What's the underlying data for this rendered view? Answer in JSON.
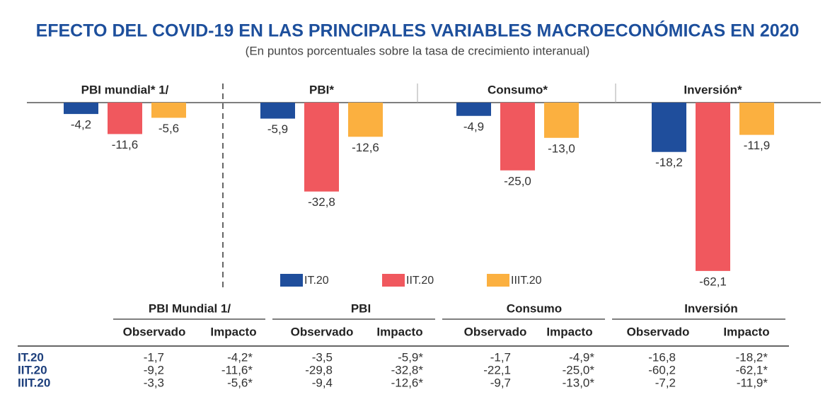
{
  "chart_data": {
    "type": "bar",
    "title": "EFECTO DEL COVID-19 EN LAS PRINCIPALES VARIABLES MACROECONÓMICAS EN 2020",
    "subtitle": "(En puntos porcentuales sobre la tasa de crecimiento interanual)",
    "categories": [
      "PBI mundial* 1/",
      "PBI*",
      "Consumo*",
      "Inversión*"
    ],
    "ylim": [
      -65,
      0
    ],
    "series": [
      {
        "name": "IT.20",
        "color": "#1f4e9c",
        "values": [
          -4.2,
          -5.9,
          -4.9,
          -18.2
        ],
        "value_labels": [
          "-4,2",
          "-5,9",
          "-4,9",
          "-18,2"
        ]
      },
      {
        "name": "IIT.20",
        "color": "#f0585e",
        "values": [
          -11.6,
          -32.8,
          -25.0,
          -62.1
        ],
        "value_labels": [
          "-11,6",
          "-32,8",
          "-25,0",
          "-62,1"
        ]
      },
      {
        "name": "IIIT.20",
        "color": "#fbb040",
        "values": [
          -5.6,
          -12.6,
          -13.0,
          -11.9
        ],
        "value_labels": [
          "-5,6",
          "-12,6",
          "-13,0",
          "-11,9"
        ]
      }
    ]
  },
  "table": {
    "groups": [
      "PBI Mundial 1/",
      "PBI",
      "Consumo",
      "Inversión"
    ],
    "subheaders": [
      "Observado",
      "Impacto"
    ],
    "rows": [
      [
        "IT.20",
        "-1,7",
        "-4,2*",
        "-3,5",
        "-5,9*",
        "-1,7",
        "-4,9*",
        "-16,8",
        "-18,2*"
      ],
      [
        "IIT.20",
        "-9,2",
        "-11,6*",
        "-29,8",
        "-32,8*",
        "-22,1",
        "-25,0*",
        "-60,2",
        "-62,1*"
      ],
      [
        "IIIT.20",
        "-3,3",
        "-5,6*",
        "-9,4",
        "-12,6*",
        "-9,7",
        "-13,0*",
        "-7,2",
        "-11,9*"
      ]
    ]
  }
}
